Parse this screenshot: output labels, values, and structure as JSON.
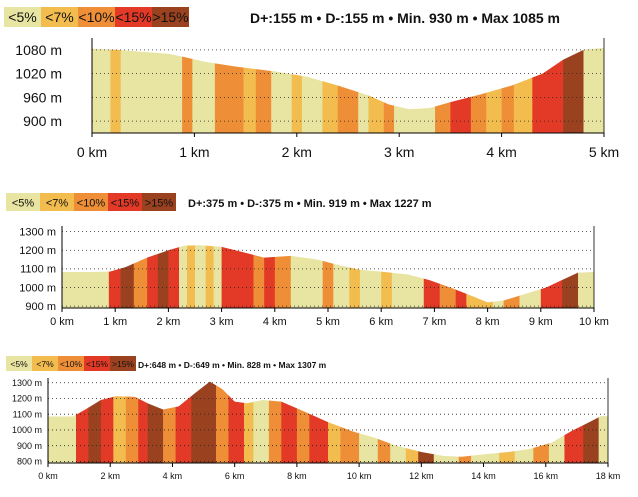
{
  "grade_colors": {
    "lt5": "#e8e4a2",
    "lt7": "#f2bc4e",
    "lt10": "#ee8f37",
    "lt15": "#e23a26",
    "gt15": "#9a4220"
  },
  "chart_data": [
    {
      "type": "area",
      "legend": [
        "<5%",
        "<7%",
        "<10%",
        "<15%",
        ">15%"
      ],
      "stats": "D+:155 m  •  D-:155 m  •  Min. 930 m  •  Max 1085 m",
      "xlabel": "",
      "ylabel": "",
      "xlim": [
        0,
        5
      ],
      "ylim": [
        870,
        1110
      ],
      "x_ticks": [
        0,
        1,
        2,
        3,
        4,
        5
      ],
      "x_tick_labels": [
        "0 km",
        "1 km",
        "2 km",
        "3 km",
        "4 km",
        "5 km"
      ],
      "y_ticks": [
        900,
        960,
        1020,
        1080
      ],
      "y_tick_labels": [
        "900 m",
        "960 m",
        "1020 m",
        "1080 m"
      ],
      "profile": [
        [
          0,
          1083
        ],
        [
          0.25,
          1080
        ],
        [
          0.5,
          1075
        ],
        [
          0.75,
          1070
        ],
        [
          0.9,
          1062
        ],
        [
          1.1,
          1050
        ],
        [
          1.4,
          1038
        ],
        [
          1.8,
          1025
        ],
        [
          2.1,
          1012
        ],
        [
          2.4,
          990
        ],
        [
          2.7,
          965
        ],
        [
          2.9,
          942
        ],
        [
          3.1,
          930
        ],
        [
          3.3,
          933
        ],
        [
          3.5,
          948
        ],
        [
          3.8,
          968
        ],
        [
          4.1,
          990
        ],
        [
          4.4,
          1020
        ],
        [
          4.6,
          1055
        ],
        [
          4.8,
          1080
        ],
        [
          5,
          1085
        ]
      ],
      "segments": [
        [
          0,
          0.18,
          "lt5"
        ],
        [
          0.18,
          0.28,
          "lt7"
        ],
        [
          0.28,
          0.88,
          "lt5"
        ],
        [
          0.88,
          0.98,
          "lt10"
        ],
        [
          0.98,
          1.2,
          "lt5"
        ],
        [
          1.2,
          1.48,
          "lt10"
        ],
        [
          1.48,
          1.6,
          "lt7"
        ],
        [
          1.6,
          1.75,
          "lt10"
        ],
        [
          1.75,
          1.95,
          "lt5"
        ],
        [
          1.95,
          2.05,
          "lt7"
        ],
        [
          2.05,
          2.25,
          "lt5"
        ],
        [
          2.25,
          2.4,
          "lt7"
        ],
        [
          2.4,
          2.6,
          "lt10"
        ],
        [
          2.6,
          2.7,
          "lt5"
        ],
        [
          2.7,
          2.85,
          "lt7"
        ],
        [
          2.85,
          2.95,
          "lt10"
        ],
        [
          2.95,
          3.35,
          "lt5"
        ],
        [
          3.35,
          3.5,
          "lt10"
        ],
        [
          3.5,
          3.7,
          "lt15"
        ],
        [
          3.7,
          3.85,
          "lt10"
        ],
        [
          3.85,
          4.0,
          "lt7"
        ],
        [
          4.0,
          4.12,
          "lt10"
        ],
        [
          4.12,
          4.3,
          "lt7"
        ],
        [
          4.3,
          4.6,
          "lt15"
        ],
        [
          4.6,
          4.8,
          "gt15"
        ],
        [
          4.8,
          5.0,
          "lt5"
        ]
      ]
    },
    {
      "type": "area",
      "legend": [
        "<5%",
        "<7%",
        "<10%",
        "<15%",
        ">15%"
      ],
      "stats": "D+:375 m  •  D-:375 m  •  Min. 919 m  •  Max 1227 m",
      "xlabel": "",
      "ylabel": "",
      "xlim": [
        0,
        10
      ],
      "ylim": [
        890,
        1330
      ],
      "x_ticks": [
        0,
        1,
        2,
        3,
        4,
        5,
        6,
        7,
        8,
        9,
        10
      ],
      "x_tick_labels": [
        "0 km",
        "1 km",
        "2 km",
        "3 km",
        "4 km",
        "5 km",
        "6 km",
        "7 km",
        "8 km",
        "9 km",
        "10 km"
      ],
      "y_ticks": [
        900,
        1000,
        1100,
        1200,
        1300
      ],
      "y_tick_labels": [
        "900 m",
        "1000 m",
        "1100 m",
        "1200 m",
        "1300 m"
      ],
      "profile": [
        [
          0,
          1083
        ],
        [
          0.5,
          1083
        ],
        [
          0.9,
          1085
        ],
        [
          1.2,
          1110
        ],
        [
          1.6,
          1160
        ],
        [
          2.0,
          1200
        ],
        [
          2.3,
          1225
        ],
        [
          2.6,
          1227
        ],
        [
          3.0,
          1218
        ],
        [
          3.4,
          1190
        ],
        [
          3.8,
          1160
        ],
        [
          4.3,
          1170
        ],
        [
          4.8,
          1150
        ],
        [
          5.2,
          1120
        ],
        [
          5.6,
          1095
        ],
        [
          6.0,
          1085
        ],
        [
          6.5,
          1070
        ],
        [
          6.9,
          1040
        ],
        [
          7.3,
          1000
        ],
        [
          7.7,
          955
        ],
        [
          8.0,
          920
        ],
        [
          8.3,
          930
        ],
        [
          8.7,
          965
        ],
        [
          9.1,
          1000
        ],
        [
          9.4,
          1040
        ],
        [
          9.7,
          1080
        ],
        [
          10,
          1083
        ]
      ],
      "segments": [
        [
          0,
          0.88,
          "lt5"
        ],
        [
          0.88,
          1.1,
          "lt15"
        ],
        [
          1.1,
          1.35,
          "gt15"
        ],
        [
          1.35,
          1.6,
          "lt10"
        ],
        [
          1.6,
          1.8,
          "lt15"
        ],
        [
          1.8,
          2.0,
          "gt15"
        ],
        [
          2.0,
          2.2,
          "lt15"
        ],
        [
          2.2,
          2.35,
          "lt5"
        ],
        [
          2.35,
          2.5,
          "lt7"
        ],
        [
          2.5,
          2.7,
          "lt5"
        ],
        [
          2.7,
          2.85,
          "lt7"
        ],
        [
          2.85,
          3.0,
          "lt5"
        ],
        [
          3.0,
          3.6,
          "lt15"
        ],
        [
          3.6,
          3.8,
          "lt10"
        ],
        [
          3.8,
          4.0,
          "lt15"
        ],
        [
          4.0,
          4.3,
          "lt10"
        ],
        [
          4.3,
          4.9,
          "lt5"
        ],
        [
          4.9,
          5.1,
          "lt10"
        ],
        [
          5.1,
          5.4,
          "lt5"
        ],
        [
          5.4,
          5.6,
          "lt7"
        ],
        [
          5.6,
          6.0,
          "lt5"
        ],
        [
          6.0,
          6.2,
          "lt7"
        ],
        [
          6.2,
          6.8,
          "lt5"
        ],
        [
          6.8,
          7.1,
          "lt15"
        ],
        [
          7.1,
          7.4,
          "lt10"
        ],
        [
          7.4,
          7.6,
          "lt15"
        ],
        [
          7.6,
          8.1,
          "lt7"
        ],
        [
          8.1,
          8.3,
          "lt5"
        ],
        [
          8.3,
          8.6,
          "lt10"
        ],
        [
          8.6,
          9.0,
          "lt5"
        ],
        [
          9.0,
          9.4,
          "lt15"
        ],
        [
          9.4,
          9.7,
          "gt15"
        ],
        [
          9.7,
          10,
          "lt5"
        ]
      ]
    },
    {
      "type": "area",
      "legend": [
        "<5%",
        "<7%",
        "<10%",
        "<15%",
        ">15%"
      ],
      "stats": "D+:648 m  •  D-:649 m  •  Min. 828 m  •  Max 1307 m",
      "xlabel": "",
      "ylabel": "",
      "xlim": [
        0,
        18
      ],
      "ylim": [
        790,
        1330
      ],
      "x_ticks": [
        0,
        2,
        4,
        6,
        8,
        10,
        12,
        14,
        16,
        18
      ],
      "x_tick_labels": [
        "0 km",
        "2 km",
        "4 km",
        "6 km",
        "8 km",
        "10 km",
        "12 km",
        "14 km",
        "16 km",
        "18 km"
      ],
      "y_ticks": [
        800,
        900,
        1000,
        1100,
        1200,
        1300
      ],
      "y_tick_labels": [
        "800 m",
        "900 m",
        "1000 m",
        "1100 m",
        "1200 m",
        "1300 m"
      ],
      "profile": [
        [
          0,
          1085
        ],
        [
          0.8,
          1085
        ],
        [
          1.2,
          1130
        ],
        [
          1.7,
          1190
        ],
        [
          2.2,
          1215
        ],
        [
          2.8,
          1210
        ],
        [
          3.2,
          1170
        ],
        [
          3.7,
          1130
        ],
        [
          4.2,
          1150
        ],
        [
          4.7,
          1230
        ],
        [
          5.2,
          1307
        ],
        [
          5.6,
          1260
        ],
        [
          6.0,
          1180
        ],
        [
          6.4,
          1170
        ],
        [
          6.9,
          1190
        ],
        [
          7.5,
          1180
        ],
        [
          8.2,
          1120
        ],
        [
          9.0,
          1050
        ],
        [
          9.8,
          990
        ],
        [
          10.5,
          950
        ],
        [
          11.2,
          900
        ],
        [
          12.0,
          860
        ],
        [
          12.7,
          835
        ],
        [
          13.3,
          830
        ],
        [
          14.0,
          845
        ],
        [
          14.8,
          860
        ],
        [
          15.5,
          880
        ],
        [
          16.2,
          920
        ],
        [
          16.8,
          990
        ],
        [
          17.4,
          1050
        ],
        [
          17.8,
          1090
        ],
        [
          18,
          1085
        ]
      ],
      "segments": [
        [
          0,
          0.9,
          "lt5"
        ],
        [
          0.9,
          1.3,
          "lt15"
        ],
        [
          1.3,
          1.7,
          "gt15"
        ],
        [
          1.7,
          2.1,
          "lt15"
        ],
        [
          2.1,
          2.5,
          "lt7"
        ],
        [
          2.5,
          2.9,
          "lt10"
        ],
        [
          2.9,
          3.2,
          "lt15"
        ],
        [
          3.2,
          3.7,
          "gt15"
        ],
        [
          3.7,
          4.1,
          "lt10"
        ],
        [
          4.1,
          4.6,
          "lt15"
        ],
        [
          4.6,
          5.4,
          "gt15"
        ],
        [
          5.4,
          5.8,
          "lt10"
        ],
        [
          5.8,
          6.3,
          "lt15"
        ],
        [
          6.3,
          6.6,
          "lt7"
        ],
        [
          6.6,
          7.1,
          "lt5"
        ],
        [
          7.1,
          7.5,
          "lt10"
        ],
        [
          7.5,
          8.0,
          "lt15"
        ],
        [
          8.0,
          8.4,
          "lt10"
        ],
        [
          8.4,
          9.0,
          "lt15"
        ],
        [
          9.0,
          9.4,
          "lt7"
        ],
        [
          9.4,
          10.0,
          "lt10"
        ],
        [
          10.0,
          10.6,
          "lt5"
        ],
        [
          10.6,
          11.0,
          "lt10"
        ],
        [
          11.0,
          11.5,
          "lt5"
        ],
        [
          11.5,
          11.9,
          "lt7"
        ],
        [
          11.9,
          12.4,
          "gt15"
        ],
        [
          12.4,
          13.2,
          "lt5"
        ],
        [
          13.2,
          13.6,
          "lt10"
        ],
        [
          13.6,
          14.5,
          "lt5"
        ],
        [
          14.5,
          15.0,
          "lt7"
        ],
        [
          15.0,
          15.6,
          "lt5"
        ],
        [
          15.6,
          16.1,
          "lt10"
        ],
        [
          16.1,
          16.6,
          "lt5"
        ],
        [
          16.6,
          17.2,
          "lt15"
        ],
        [
          17.2,
          17.7,
          "gt15"
        ],
        [
          17.7,
          18,
          "lt5"
        ]
      ]
    }
  ]
}
